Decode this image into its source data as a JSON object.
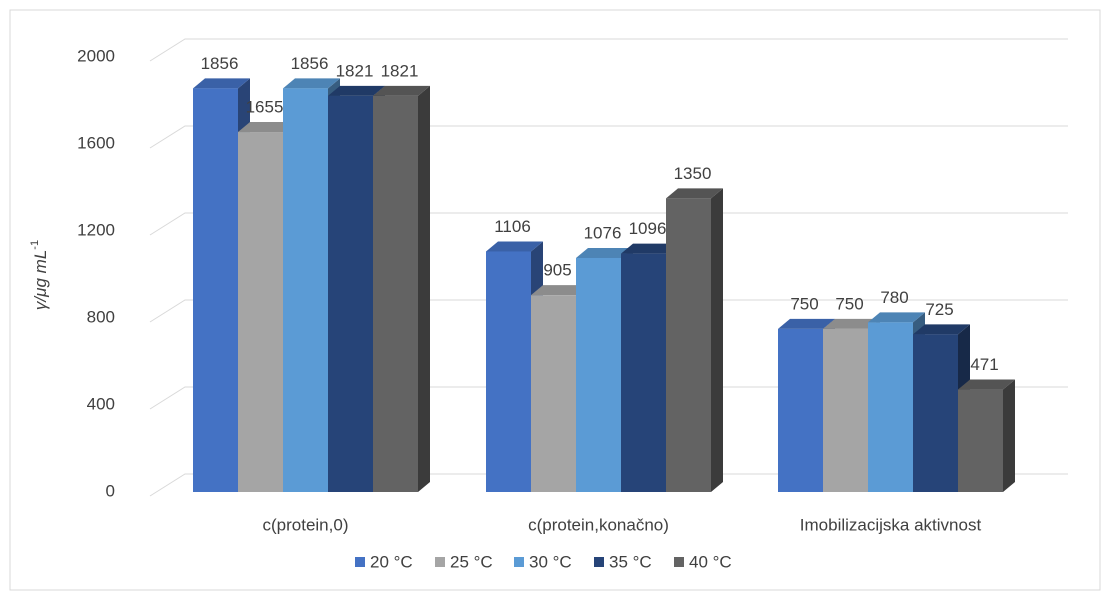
{
  "chart_data": {
    "type": "bar3d",
    "ylabel": {
      "text": "γ/μg mL",
      "sup": "-1"
    },
    "categories": [
      "c(protein,0)",
      "c(protein,konačno)",
      "Imobilizacijska aktivnost"
    ],
    "series": [
      {
        "name": "20 °C",
        "color": "#4472c4",
        "values": [
          1856,
          1106,
          750
        ]
      },
      {
        "name": "25 °C",
        "color": "#a5a5a5",
        "values": [
          1655,
          905,
          750
        ]
      },
      {
        "name": "30 °C",
        "color": "#5b9bd5",
        "values": [
          1856,
          1076,
          780
        ]
      },
      {
        "name": "35 °C",
        "color": "#264478",
        "values": [
          1821,
          1096,
          725
        ]
      },
      {
        "name": "40 °C",
        "color": "#636363",
        "values": [
          1821,
          1350,
          471
        ]
      }
    ],
    "ylim": [
      0,
      2000
    ],
    "yticks": [
      0,
      400,
      800,
      1200,
      1600,
      2000
    ],
    "grid": true,
    "legend": "bottom"
  }
}
